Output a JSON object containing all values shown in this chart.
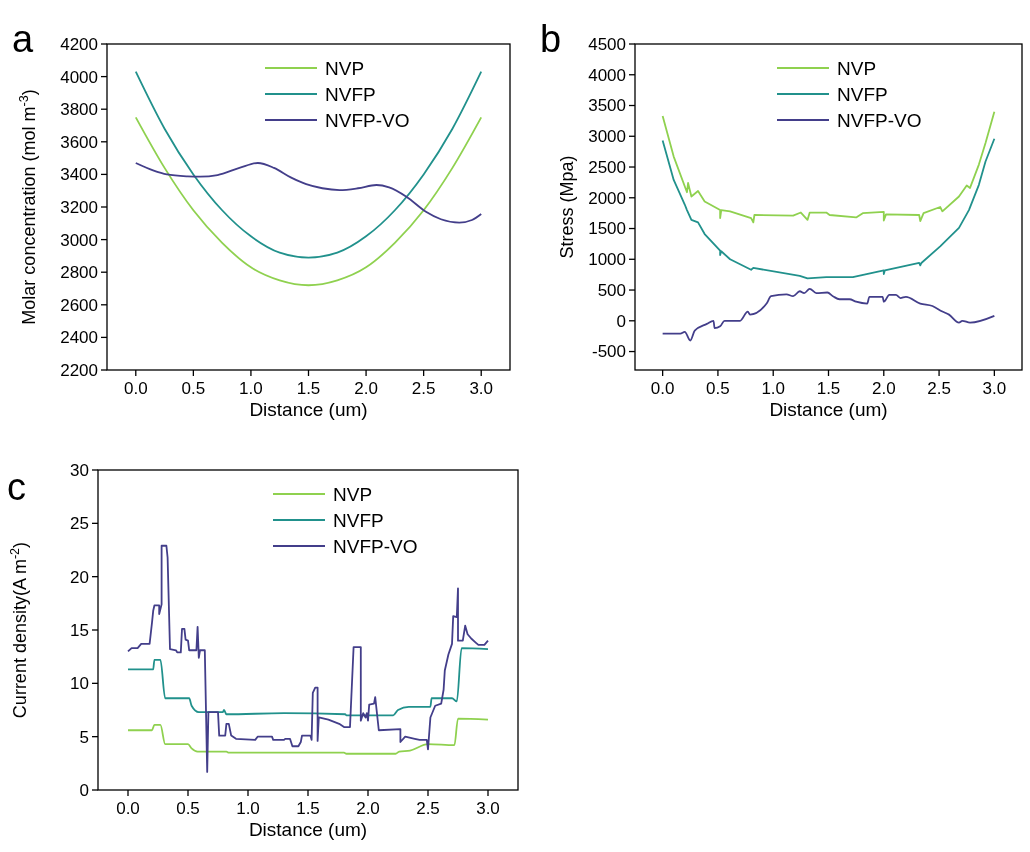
{
  "chart_data": [
    {
      "type": "line",
      "annotations": [
        "a"
      ],
      "xlabel": "Distance (um)",
      "ylabel": "Molar concentration (mol m$^{-3}$)",
      "xlim": [
        -0.25,
        3.25
      ],
      "ylim": [
        2200,
        4200
      ],
      "xticks": [
        {
          "value": 0,
          "label": "0.0"
        },
        {
          "value": 0.5,
          "label": "0.5"
        },
        {
          "value": 1,
          "label": "1.0"
        },
        {
          "value": 1.5,
          "label": "1.5"
        },
        {
          "value": 2,
          "label": "2.0"
        },
        {
          "value": 2.5,
          "label": "2.5"
        },
        {
          "value": 3,
          "label": "3.0"
        }
      ],
      "yticks": [
        2200,
        2400,
        2600,
        2800,
        3000,
        3200,
        3400,
        3600,
        3800,
        4000,
        4200
      ],
      "legend": "top right",
      "grid": false,
      "series": [
        {
          "name": "NVP",
          "color": "#8fd14f",
          "x": [
            0,
            0.25,
            0.5,
            0.75,
            1,
            1.25,
            1.5,
            1.75,
            2,
            2.25,
            2.5,
            2.75,
            3
          ],
          "values": [
            3750,
            3440,
            3180,
            2980,
            2830,
            2750,
            2720,
            2750,
            2830,
            2980,
            3180,
            3440,
            3750
          ]
        },
        {
          "name": "NVFP",
          "color": "#21918c",
          "x": [
            0,
            0.25,
            0.5,
            0.75,
            1,
            1.25,
            1.5,
            1.75,
            2,
            2.25,
            2.5,
            2.75,
            3
          ],
          "values": [
            4030,
            3680,
            3400,
            3180,
            3020,
            2920,
            2890,
            2920,
            3020,
            3180,
            3400,
            3680,
            4030
          ]
        },
        {
          "name": "NVFP-VO",
          "color": "#433e8a",
          "x": [
            0,
            0.15,
            0.27,
            0.45,
            0.56,
            0.71,
            0.9,
            1.06,
            1.2,
            1.35,
            1.48,
            1.62,
            1.77,
            1.93,
            2.09,
            2.2,
            2.35,
            2.52,
            2.65,
            2.81,
            2.92,
            3
          ],
          "values": [
            3470,
            3425,
            3400,
            3388,
            3386,
            3396,
            3440,
            3470,
            3440,
            3380,
            3340,
            3315,
            3304,
            3315,
            3335,
            3320,
            3263,
            3171,
            3125,
            3104,
            3120,
            3157
          ]
        }
      ]
    },
    {
      "type": "line",
      "annotations": [
        "b"
      ],
      "xlabel": "Distance (um)",
      "ylabel": "Stress (Mpa)",
      "xlim": [
        -0.25,
        3.25
      ],
      "ylim": [
        -800,
        4500
      ],
      "xticks": [
        {
          "value": 0,
          "label": "0.0"
        },
        {
          "value": 0.5,
          "label": "0.5"
        },
        {
          "value": 1,
          "label": "1.0"
        },
        {
          "value": 1.5,
          "label": "1.5"
        },
        {
          "value": 2,
          "label": "2.0"
        },
        {
          "value": 2.5,
          "label": "2.5"
        },
        {
          "value": 3,
          "label": "3.0"
        }
      ],
      "yticks": [
        -500,
        0,
        500,
        1000,
        1500,
        2000,
        2500,
        3000,
        3500,
        4000,
        4500
      ],
      "legend": "top right",
      "grid": false,
      "series": [
        {
          "name": "NVP",
          "color": "#8fd14f",
          "x": [
            0,
            0.1,
            0.22,
            0.23,
            0.26,
            0.32,
            0.38,
            0.52,
            0.52,
            0.53,
            0.61,
            0.8,
            0.82,
            0.83,
            1.18,
            1.25,
            1.31,
            1.33,
            1.48,
            1.51,
            1.75,
            1.81,
            2,
            2,
            2.02,
            2.32,
            2.33,
            2.36,
            2.51,
            2.53,
            2.68,
            2.75,
            2.78,
            2.86,
            2.92,
            3
          ],
          "values": [
            3330,
            2670,
            2090,
            2240,
            2020,
            2110,
            1940,
            1800,
            1670,
            1800,
            1780,
            1670,
            1600,
            1720,
            1710,
            1760,
            1640,
            1760,
            1760,
            1720,
            1680,
            1750,
            1770,
            1630,
            1730,
            1720,
            1620,
            1750,
            1850,
            1780,
            2020,
            2200,
            2160,
            2540,
            2890,
            3400
          ]
        },
        {
          "name": "NVFP",
          "color": "#21918c",
          "x": [
            0,
            0.1,
            0.2,
            0.22,
            0.26,
            0.32,
            0.38,
            0.52,
            0.52,
            0.53,
            0.61,
            0.8,
            0.82,
            1.24,
            1.31,
            1.48,
            1.72,
            2,
            2,
            2.01,
            2.32,
            2.33,
            2.34,
            2.51,
            2.68,
            2.77,
            2.86,
            2.92,
            3
          ],
          "values": [
            2930,
            2290,
            1890,
            1800,
            1640,
            1600,
            1410,
            1140,
            1070,
            1130,
            1000,
            830,
            860,
            730,
            690,
            710,
            710,
            820,
            760,
            820,
            940,
            900,
            940,
            1210,
            1510,
            1800,
            2210,
            2590,
            2960
          ]
        },
        {
          "name": "NVFP-VO",
          "color": "#433e8a",
          "x": [
            0,
            0.16,
            0.2,
            0.25,
            0.29,
            0.4,
            0.46,
            0.47,
            0.52,
            0.56,
            0.7,
            0.77,
            0.79,
            0.94,
            0.98,
            1.12,
            1.18,
            1.24,
            1.28,
            1.33,
            1.39,
            1.49,
            1.54,
            1.6,
            1.69,
            1.75,
            1.85,
            1.87,
            1.99,
            2,
            2.05,
            2.11,
            2.15,
            2.2,
            2.33,
            2.44,
            2.53,
            2.59,
            2.68,
            2.71,
            2.78,
            3
          ],
          "values": [
            -210,
            -210,
            -180,
            -320,
            -160,
            -50,
            0,
            -120,
            -90,
            0,
            0,
            150,
            100,
            280,
            400,
            430,
            400,
            480,
            450,
            520,
            450,
            460,
            400,
            350,
            350,
            310,
            280,
            390,
            390,
            310,
            420,
            420,
            370,
            390,
            280,
            240,
            150,
            100,
            -30,
            0,
            -30,
            80
          ]
        }
      ]
    },
    {
      "type": "line",
      "annotations": [
        "c"
      ],
      "xlabel": "Distance (um)",
      "ylabel": "Current density(A m$^{-2}$)",
      "xlim": [
        -0.25,
        3.25
      ],
      "ylim": [
        0,
        30
      ],
      "xticks": [
        {
          "value": 0,
          "label": "0.0"
        },
        {
          "value": 0.5,
          "label": "0.5"
        },
        {
          "value": 1,
          "label": "1.0"
        },
        {
          "value": 1.5,
          "label": "1.5"
        },
        {
          "value": 2,
          "label": "2.0"
        },
        {
          "value": 2.5,
          "label": "2.5"
        },
        {
          "value": 3,
          "label": "3.0"
        }
      ],
      "yticks": [
        0,
        5,
        10,
        15,
        20,
        25,
        30
      ],
      "legend": "top right",
      "grid": false,
      "series": [
        {
          "name": "NVP",
          "color": "#8fd14f",
          "x": [
            0,
            0.2,
            0.22,
            0.27,
            0.31,
            0.5,
            0.53,
            0.58,
            0.82,
            0.84,
            1.5,
            1.8,
            1.82,
            2.23,
            2.26,
            2.35,
            2.5,
            2.72,
            2.75,
            3
          ],
          "values": [
            5.6,
            5.6,
            6.1,
            6.1,
            4.3,
            4.3,
            3.9,
            3.6,
            3.6,
            3.5,
            3.5,
            3.5,
            3.4,
            3.4,
            3.6,
            3.7,
            4.3,
            4.2,
            6.7,
            6.6
          ]
        },
        {
          "name": "NVFP",
          "color": "#21918c",
          "x": [
            0,
            0.21,
            0.22,
            0.27,
            0.31,
            0.51,
            0.53,
            0.59,
            0.79,
            0.8,
            0.82,
            1.3,
            1.81,
            1.82,
            2.21,
            2.25,
            2.34,
            2.52,
            2.53,
            2.7,
            2.74,
            2.78,
            3
          ],
          "values": [
            11.3,
            11.3,
            12.2,
            12.2,
            8.6,
            8.6,
            7.9,
            7.3,
            7.3,
            7.5,
            7.1,
            7.2,
            7.1,
            7,
            7,
            7.5,
            7.8,
            7.8,
            8.6,
            8.6,
            8.3,
            13.3,
            13.2
          ]
        },
        {
          "name": "NVFP-VO",
          "color": "#433e8a",
          "x": [
            0,
            0.03,
            0.08,
            0.11,
            0.18,
            0.2,
            0.21,
            0.22,
            0.26,
            0.26,
            0.28,
            0.28,
            0.32,
            0.33,
            0.35,
            0.4,
            0.41,
            0.44,
            0.45,
            0.47,
            0.48,
            0.5,
            0.51,
            0.57,
            0.58,
            0.59,
            0.6,
            0.64,
            0.66,
            0.67,
            0.75,
            0.76,
            0.81,
            0.82,
            0.84,
            0.86,
            0.9,
            1.06,
            1.08,
            1.2,
            1.21,
            1.3,
            1.31,
            1.35,
            1.37,
            1.42,
            1.44,
            1.45,
            1.52,
            1.53,
            1.54,
            1.56,
            1.58,
            1.58,
            1.59,
            1.67,
            1.76,
            1.8,
            1.85,
            1.88,
            1.94,
            1.94,
            1.96,
            1.98,
            1.99,
            2,
            2.01,
            2.05,
            2.06,
            2.09,
            2.27,
            2.27,
            2.31,
            2.39,
            2.43,
            2.49,
            2.5,
            2.52,
            2.56,
            2.61,
            2.63,
            2.64,
            2.67,
            2.7,
            2.71,
            2.74,
            2.75,
            2.75,
            2.79,
            2.81,
            2.83,
            2.86,
            2.9,
            2.92,
            2.97,
            3
          ],
          "values": [
            13,
            13.3,
            13.3,
            13.7,
            13.7,
            15.7,
            16.8,
            17.3,
            17.3,
            16.5,
            17.4,
            22.9,
            22.9,
            21.8,
            13.2,
            13.1,
            12.9,
            12.9,
            15.1,
            15.1,
            14.1,
            14,
            13.1,
            13.1,
            15.3,
            12.4,
            13.1,
            13.1,
            1.7,
            7.3,
            7.3,
            5.1,
            5.1,
            6.2,
            6.2,
            5.1,
            4.8,
            4.7,
            5,
            5,
            4.7,
            4.7,
            4.8,
            4.8,
            4.1,
            4.1,
            4.5,
            5.1,
            5.1,
            4.7,
            9.1,
            9.6,
            9.6,
            4.6,
            6.8,
            6.6,
            6.2,
            5.9,
            5.9,
            13.4,
            13.4,
            6.5,
            7.2,
            6.8,
            7.2,
            6.5,
            8,
            8.1,
            8.7,
            5.6,
            5.7,
            4.5,
            5,
            4.8,
            4.7,
            4.7,
            3.8,
            6.8,
            7.9,
            8.1,
            9.4,
            11.2,
            12.7,
            13.7,
            16.3,
            16.2,
            18.9,
            14,
            14,
            15.4,
            14.6,
            14.2,
            13.8,
            13.6,
            13.6,
            14
          ]
        }
      ]
    }
  ]
}
